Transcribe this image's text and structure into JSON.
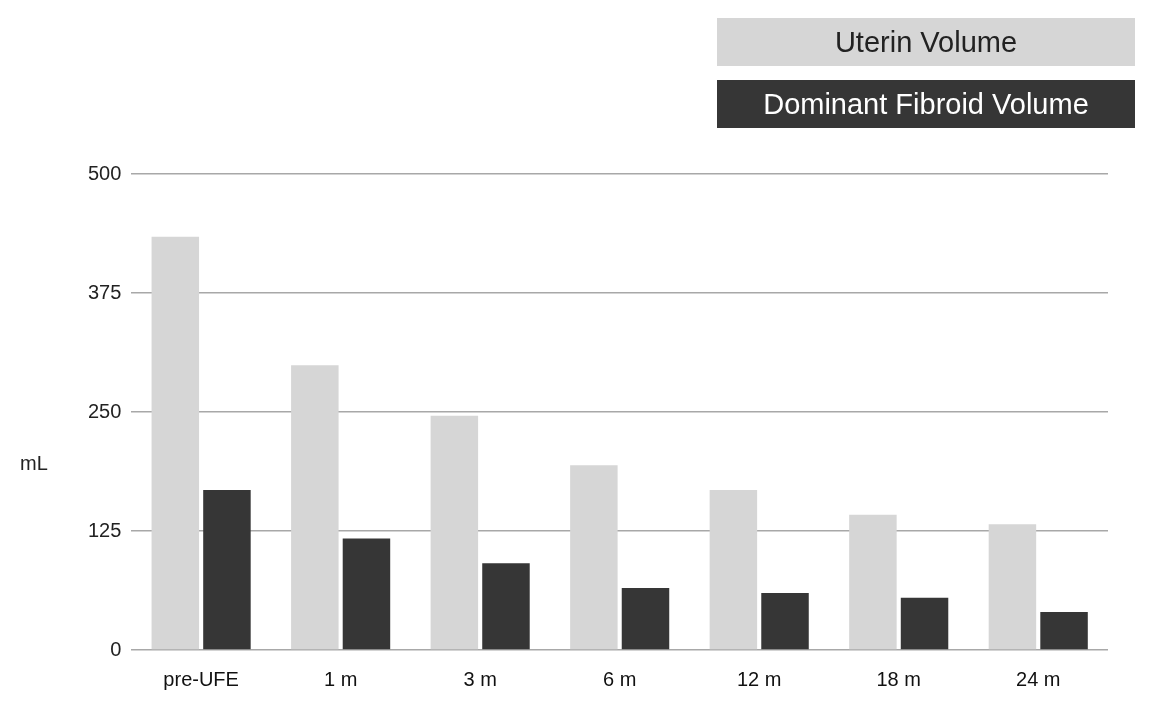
{
  "chart_data": {
    "type": "bar",
    "categories": [
      "pre-UFE",
      "1 m",
      "3 m",
      "6 m",
      "12 m",
      "18 m",
      "24 m"
    ],
    "series": [
      {
        "name": "Uterin Volume",
        "color": "#d6d6d6",
        "values": [
          434,
          299,
          246,
          194,
          168,
          142,
          132
        ]
      },
      {
        "name": "Dominant Fibroid Volume",
        "color": "#363636",
        "values": [
          168,
          117,
          91,
          65,
          60,
          55,
          40
        ]
      }
    ],
    "ylabel": "mL",
    "ylim": [
      0,
      500
    ],
    "yticks": [
      0,
      125,
      250,
      375,
      500
    ],
    "grid": "y",
    "legend": "top right"
  }
}
